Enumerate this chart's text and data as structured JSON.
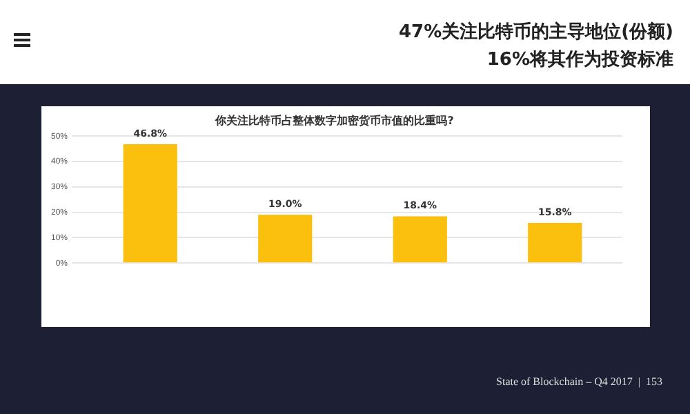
{
  "chart_data": {
    "type": "bar",
    "title": "你关注比特币占整体数字加密货币市值的比重吗?",
    "categories": [
      null,
      null,
      null,
      null
    ],
    "values": [
      46.8,
      19.0,
      18.4,
      15.8
    ],
    "value_labels": [
      "46.8%",
      "19.0%",
      "18.4%",
      "15.8%"
    ],
    "color": "#fbbf0e",
    "ylim": [
      0,
      50
    ],
    "yticks": [
      {
        "value": 0,
        "label": "0%"
      },
      {
        "value": 10,
        "label": "10%"
      },
      {
        "value": 20,
        "label": "20%"
      },
      {
        "value": 30,
        "label": "30%"
      },
      {
        "value": 40,
        "label": "40%"
      },
      {
        "value": 50,
        "label": "50%"
      }
    ],
    "grid": "y",
    "legend": false,
    "annotations": [
      "47%关注比特币的主导地位(份额)",
      "16%将其作为投资标准",
      "State of Blockchain – Q4 2017  |  153"
    ]
  }
}
